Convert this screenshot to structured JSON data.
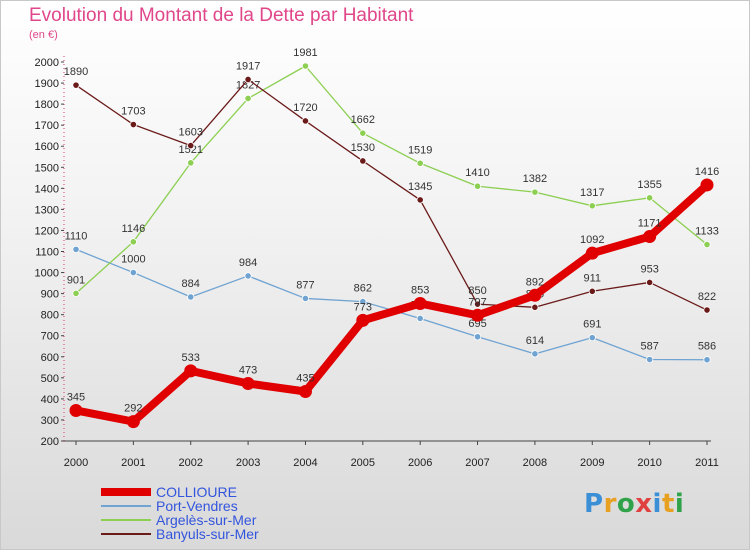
{
  "chart_data": {
    "type": "line",
    "title": "Evolution du Montant de la Dette par Habitant",
    "unit_label": "(en €)",
    "x": [
      "2000",
      "2001",
      "2002",
      "2003",
      "2004",
      "2005",
      "2006",
      "2007",
      "2008",
      "2009",
      "2010",
      "2011"
    ],
    "ylim": [
      200,
      2000
    ],
    "yticks": [
      200,
      300,
      400,
      500,
      600,
      700,
      800,
      900,
      1000,
      1100,
      1200,
      1300,
      1400,
      1500,
      1600,
      1700,
      1800,
      1900,
      2000
    ],
    "grid": false,
    "legend_position": "bottom-left",
    "series": [
      {
        "name": "COLLIOURE",
        "color": "#e00000",
        "values": [
          345,
          292,
          533,
          473,
          435,
          773,
          853,
          797,
          892,
          1092,
          1171,
          1416
        ]
      },
      {
        "name": "Port-Vendres",
        "color": "#6fa3d1",
        "values": [
          1110,
          1000,
          884,
          984,
          877,
          862,
          782,
          695,
          614,
          691,
          587,
          586
        ]
      },
      {
        "name": "Argelès-sur-Mer",
        "color": "#8ccf52",
        "values": [
          901,
          1146,
          1521,
          1827,
          1981,
          1662,
          1519,
          1410,
          1382,
          1317,
          1355,
          1133
        ]
      },
      {
        "name": "Banyuls-sur-Mer",
        "color": "#6b1a1a",
        "values": [
          1890,
          1703,
          1603,
          1917,
          1720,
          1530,
          1345,
          850,
          835,
          911,
          953,
          822
        ]
      }
    ]
  },
  "legend_colors": {
    "COLLIOURE": "#3355dd",
    "Port-Vendres": "#3355dd",
    "Argelès-sur-Mer": "#3355dd",
    "Banyuls-sur-Mer": "#3355dd"
  },
  "logo": {
    "letters": [
      "P",
      "r",
      "o",
      "x",
      "i",
      "t",
      "i"
    ],
    "colors": [
      "#3b8fd6",
      "#e8a020",
      "#2fa24a",
      "#e04040",
      "#3b8fd6",
      "#e8a020",
      "#2fa24a"
    ]
  }
}
